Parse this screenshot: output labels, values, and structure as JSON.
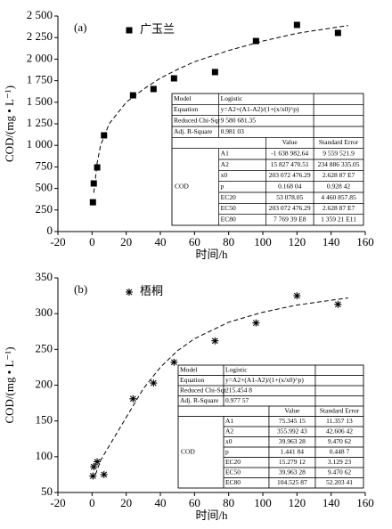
{
  "chart_data": [
    {
      "type": "scatter",
      "label": "(a)",
      "xlabel": "时间/h",
      "ylabel": "COD/(mg • L⁻¹)",
      "xlim": [
        -20,
        160
      ],
      "xticks": [
        -20,
        0,
        20,
        40,
        60,
        80,
        100,
        120,
        140,
        160
      ],
      "ylim": [
        0,
        2500
      ],
      "yticks": [
        0,
        250,
        500,
        750,
        {
          "value": 1000,
          "label": "1 000"
        },
        {
          "value": 1250,
          "label": "1 250"
        },
        {
          "value": 1500,
          "label": "1 500"
        },
        {
          "value": 1750,
          "label": "1 750"
        },
        {
          "value": 2000,
          "label": "2 000"
        },
        {
          "value": 2250,
          "label": "2 250"
        },
        {
          "value": 2500,
          "label": "2 500"
        }
      ],
      "legend": "top-left",
      "series": [
        {
          "name": "广玉兰",
          "marker": "square",
          "color": "#000000",
          "x": [
            0.5,
            1,
            3,
            7,
            24,
            36,
            48,
            72,
            96,
            120,
            144
          ],
          "values": [
            340,
            558,
            744,
            1116,
            1580,
            1653,
            1777,
            1850,
            2210,
            2397,
            2304
          ]
        }
      ],
      "fit": {
        "x": [
          1,
          3,
          5,
          10,
          20,
          30,
          40,
          50,
          60,
          80,
          100,
          120,
          150
        ],
        "values": [
          450,
          800,
          1000,
          1250,
          1500,
          1650,
          1780,
          1880,
          1970,
          2100,
          2210,
          2300,
          2390
        ]
      },
      "table": {
        "rows": [
          [
            "Model",
            "Logistic"
          ],
          [
            "Equation",
            "y=A2+(A1-A2)/(1+(x/x0)^p)"
          ],
          [
            "Reduced Chi-Sqr",
            "9 580 681.35"
          ],
          [
            "Adj. R-Square",
            "0.981 03"
          ]
        ],
        "header": [
          "Value",
          "Standard Error"
        ],
        "group": "COD",
        "params": [
          [
            "A1",
            "-1 638 982.64",
            "9 559 521.9"
          ],
          [
            "A2",
            "15 827 470.51",
            "234 886 335.05"
          ],
          [
            "x0",
            "203 072 476.29",
            "2.628 87 E7"
          ],
          [
            "p",
            "0.168 04",
            "0.928 42"
          ],
          [
            "EC20",
            "53 078.05",
            "4 460 857.85"
          ],
          [
            "EC50",
            "203 072 476.29",
            "2.628 87 E7"
          ],
          [
            "EC80",
            "7 769 39 E8",
            "1 359 21 E11"
          ]
        ]
      }
    },
    {
      "type": "scatter",
      "label": "(b)",
      "xlabel": "时间/h",
      "ylabel": "COD/(mg • L⁻¹)",
      "xlim": [
        -20,
        160
      ],
      "xticks": [
        -20,
        0,
        20,
        40,
        60,
        80,
        100,
        120,
        140,
        160
      ],
      "ylim": [
        50,
        350
      ],
      "yticks": [
        50,
        100,
        150,
        200,
        250,
        300,
        350
      ],
      "legend": "top-left",
      "series": [
        {
          "name": "梧桐",
          "marker": "star",
          "color": "#000000",
          "x": [
            0.5,
            1,
            3,
            7,
            24,
            36,
            48,
            72,
            96,
            120,
            144
          ],
          "values": [
            73,
            86,
            93,
            75,
            181,
            203,
            232,
            262,
            287,
            325,
            313
          ]
        }
      ],
      "fit": {
        "x": [
          2,
          5,
          10,
          20,
          30,
          40,
          50,
          60,
          80,
          100,
          120,
          150
        ],
        "values": [
          75,
          95,
          115,
          155,
          195,
          225,
          248,
          265,
          288,
          302,
          312,
          322
        ]
      },
      "table": {
        "rows": [
          [
            "Model",
            "Logistic"
          ],
          [
            "Equation",
            "y=A2+(A1-A2)/(1+(x/x0)^p)"
          ],
          [
            "Reduced Chi-Sqr",
            "215.454 8"
          ],
          [
            "Adj. R-Square",
            "0.977 57"
          ]
        ],
        "header": [
          "Value",
          "Standard Error"
        ],
        "group": "COD",
        "params": [
          [
            "A1",
            "75.345 15",
            "11.357 13"
          ],
          [
            "A2",
            "355.992 43",
            "42.606 42"
          ],
          [
            "x0",
            "39.963 28",
            "9.470 62"
          ],
          [
            "p",
            "1.441 84",
            "0.448 7"
          ],
          [
            "EC20",
            "15.279 12",
            "3.129 23"
          ],
          [
            "EC50",
            "39.963 28",
            "9.470 62"
          ],
          [
            "EC80",
            "104.525 87",
            "52.203 41"
          ]
        ]
      }
    }
  ]
}
